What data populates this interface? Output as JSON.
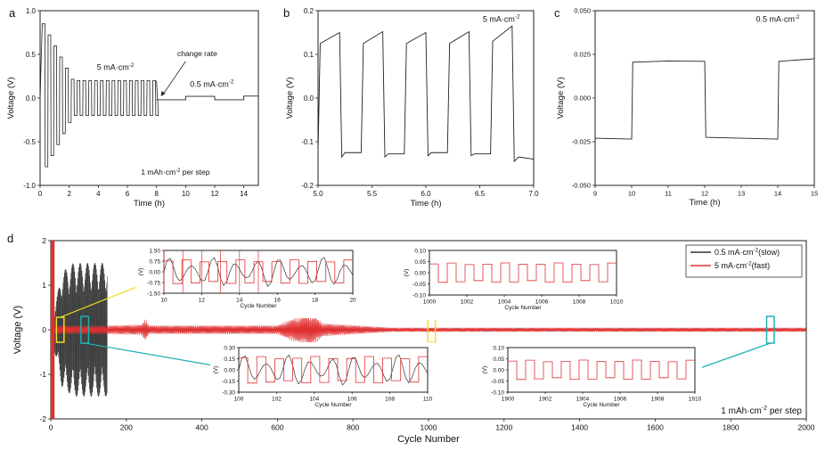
{
  "chart_data": [
    {
      "id": "a",
      "type": "line",
      "panel_letter": "a",
      "xlabel": "Time (h)",
      "ylabel": "Voltage (V)",
      "xlim": [
        0,
        15
      ],
      "ylim": [
        -1.0,
        1.0
      ],
      "xticks": [
        0,
        2,
        4,
        6,
        8,
        10,
        12,
        14
      ],
      "yticks": [
        -1.0,
        -0.5,
        0.0,
        0.5,
        1.0
      ],
      "ytick_labels": [
        "-1.0",
        "-0.5",
        "0.0",
        "0.5",
        "1.0"
      ],
      "annotations": {
        "fast_rate": "5 mA·cm",
        "slow_rate": "0.5 mA·cm",
        "sup": "-2",
        "change": "change rate",
        "step": "1 mAh·cm",
        "step_suffix": " per step"
      },
      "series": [
        {
          "name": "square",
          "color": "#222222",
          "fast_square": {
            "t_start": 0.15,
            "t_end": 8.0,
            "period": 0.4,
            "amp_start": 0.85,
            "amp_end": 0.2,
            "decay_end": 2.2
          },
          "slow_points": [
            [
              8.0,
              -0.02
            ],
            [
              10.0,
              -0.02
            ],
            [
              10.0,
              0.02
            ],
            [
              12.0,
              0.02
            ],
            [
              12.0,
              -0.02
            ],
            [
              14.0,
              -0.02
            ],
            [
              14.0,
              0.022
            ],
            [
              15.0,
              0.022
            ]
          ]
        }
      ]
    },
    {
      "id": "b",
      "type": "line",
      "panel_letter": "b",
      "xlabel": "Time (h)",
      "ylabel": "Voltage (V)",
      "xlim": [
        5.0,
        7.0
      ],
      "ylim": [
        -0.2,
        0.2
      ],
      "xticks": [
        5.0,
        5.5,
        6.0,
        6.5,
        7.0
      ],
      "xtick_labels": [
        "5.0",
        "5.5",
        "6.0",
        "6.5",
        "7.0"
      ],
      "yticks": [
        -0.2,
        -0.1,
        0.0,
        0.1,
        0.2
      ],
      "ytick_labels": [
        "-0.2",
        "-0.1",
        "0.0",
        "0.1",
        "0.2"
      ],
      "annotations": {
        "rate": "5 mA·cm",
        "sup": "-2"
      },
      "series": [
        {
          "name": "square",
          "color": "#222222",
          "points": [
            [
              5.0,
              -0.125
            ],
            [
              5.02,
              0.125
            ],
            [
              5.2,
              0.15
            ],
            [
              5.22,
              -0.135
            ],
            [
              5.25,
              -0.125
            ],
            [
              5.4,
              -0.125
            ],
            [
              5.42,
              0.125
            ],
            [
              5.6,
              0.152
            ],
            [
              5.62,
              -0.135
            ],
            [
              5.65,
              -0.128
            ],
            [
              5.8,
              -0.128
            ],
            [
              5.82,
              0.125
            ],
            [
              6.0,
              0.15
            ],
            [
              6.02,
              -0.132
            ],
            [
              6.05,
              -0.125
            ],
            [
              6.2,
              -0.125
            ],
            [
              6.22,
              0.125
            ],
            [
              6.4,
              0.152
            ],
            [
              6.42,
              -0.132
            ],
            [
              6.45,
              -0.128
            ],
            [
              6.6,
              -0.128
            ],
            [
              6.62,
              0.13
            ],
            [
              6.8,
              0.165
            ],
            [
              6.82,
              -0.145
            ],
            [
              6.86,
              -0.135
            ],
            [
              7.0,
              -0.14
            ]
          ]
        }
      ]
    },
    {
      "id": "c",
      "type": "line",
      "panel_letter": "c",
      "xlabel": "Time (h)",
      "ylabel": "Voltage (V)",
      "xlim": [
        9,
        15
      ],
      "ylim": [
        -0.05,
        0.05
      ],
      "xticks": [
        9,
        10,
        11,
        12,
        13,
        14,
        15
      ],
      "yticks": [
        -0.05,
        -0.025,
        0.0,
        0.025,
        0.05
      ],
      "ytick_labels": [
        "-0.050",
        "-0.025",
        "0.000",
        "0.025",
        "0.050"
      ],
      "annotations": {
        "rate": "0.5 mA·cm",
        "sup": "-2"
      },
      "series": [
        {
          "name": "square",
          "color": "#222222",
          "points": [
            [
              9.0,
              -0.023
            ],
            [
              10.0,
              -0.0235
            ],
            [
              10.03,
              0.0205
            ],
            [
              11.0,
              0.0212
            ],
            [
              12.0,
              0.021
            ],
            [
              12.03,
              -0.0225
            ],
            [
              13.0,
              -0.023
            ],
            [
              14.0,
              -0.0235
            ],
            [
              14.03,
              0.021
            ],
            [
              15.0,
              0.0225
            ]
          ]
        }
      ]
    },
    {
      "id": "d",
      "type": "line",
      "panel_letter": "d",
      "xlabel": "Cycle Number",
      "ylabel": "Voltage (V)",
      "xlim": [
        0,
        2000
      ],
      "ylim": [
        -2,
        2
      ],
      "xticks": [
        0,
        200,
        400,
        600,
        800,
        1000,
        1200,
        1400,
        1600,
        1800,
        2000
      ],
      "yticks": [
        -2,
        -1,
        0,
        1,
        2
      ],
      "legend": [
        "0.5 mA·cm",
        "5 mA·cm"
      ],
      "legend_sup": "-2",
      "legend_suffix": [
        "(slow)",
        "(fast)"
      ],
      "legend_position": "top-right",
      "annotation": "1 mAh·cm",
      "annotation_sup": "-2",
      "annotation_suffix": " per step",
      "series": [
        {
          "name": "0.5 mA·cm-2 (slow)",
          "color": "#333333",
          "x_start": 0,
          "x_end": 150,
          "envelope": [
            [
              0,
              0.1
            ],
            [
              30,
              1.3
            ],
            [
              60,
              1.5
            ],
            [
              150,
              1.5
            ]
          ]
        },
        {
          "name": "5 mA·cm-2 (fast)",
          "color": "#e03030",
          "x_start": 0,
          "x_end": 2000,
          "envelope": [
            [
              0,
              0.1
            ],
            [
              150,
              0.1
            ],
            [
              240,
              0.12
            ],
            [
              250,
              0.25
            ],
            [
              260,
              0.1
            ],
            [
              600,
              0.1
            ],
            [
              640,
              0.25
            ],
            [
              680,
              0.35
            ],
            [
              700,
              0.3
            ],
            [
              720,
              0.15
            ],
            [
              900,
              0.05
            ],
            [
              2000,
              0.05
            ]
          ],
          "spike": [
            [
              0,
              2
            ],
            [
              10,
              2
            ]
          ]
        }
      ],
      "insets": [
        {
          "id": "d1",
          "xlim": [
            10,
            20
          ],
          "ylim": [
            -1.5,
            1.5
          ],
          "xticks": [
            10,
            12,
            14,
            16,
            18,
            20
          ],
          "yticks": [
            -1.5,
            -0.75,
            0.0,
            0.75,
            1.5
          ],
          "ytick_labels": [
            "-1.50",
            "-0.75",
            "0.00",
            "0.75",
            "1.50"
          ],
          "xlabel": "Cycle Number",
          "ylabel": "(V)",
          "highlight": [
            15,
            35
          ],
          "highlight_color": "#f0e020"
        },
        {
          "id": "d2",
          "xlim": [
            1000,
            1010
          ],
          "ylim": [
            -0.1,
            0.1
          ],
          "xticks": [
            1000,
            1002,
            1004,
            1006,
            1008,
            1010
          ],
          "yticks": [
            -0.1,
            -0.05,
            0.0,
            0.05,
            0.1
          ],
          "ytick_labels": [
            "-0.10",
            "-0.05",
            "0.00",
            "0.05",
            "0.10"
          ],
          "xlabel": "Cycle Number",
          "ylabel": "(V)",
          "highlight": [
            998,
            1018
          ],
          "highlight_color": "#f0e020"
        },
        {
          "id": "d3",
          "xlim": [
            100,
            110
          ],
          "ylim": [
            -0.3,
            0.3
          ],
          "xticks": [
            100,
            102,
            104,
            106,
            108,
            110
          ],
          "yticks": [
            -0.3,
            -0.15,
            0.0,
            0.15,
            0.3
          ],
          "ytick_labels": [
            "-0.30",
            "-0.15",
            "0.00",
            "0.15",
            "0.30"
          ],
          "xlabel": "Cycle Number",
          "ylabel": "(V)",
          "highlight": [
            80,
            100
          ],
          "highlight_color": "#20b0b0"
        },
        {
          "id": "d4",
          "xlim": [
            1900,
            1910
          ],
          "ylim": [
            -0.1,
            0.1
          ],
          "xticks": [
            1900,
            1902,
            1904,
            1906,
            1908,
            1910
          ],
          "yticks": [
            -0.1,
            -0.05,
            0.0,
            0.05,
            0.1
          ],
          "ytick_labels": [
            "-0.10",
            "-0.05",
            "0.00",
            "0.05",
            "0.10"
          ],
          "xlabel": "Cycle Number",
          "ylabel": "(V)",
          "highlight": [
            1895,
            1915
          ],
          "highlight_color": "#20b0b0"
        }
      ]
    }
  ],
  "colors": {
    "slow": "#333333",
    "fast": "#e03030",
    "yellow": "#f0e020",
    "teal": "#20b0b0",
    "axis": "#222222"
  }
}
